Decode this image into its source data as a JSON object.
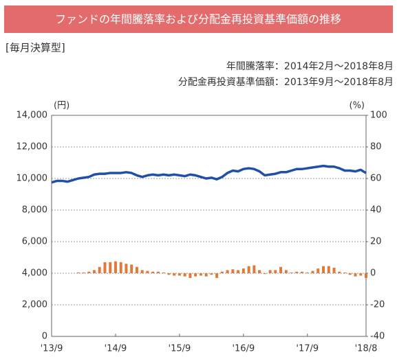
{
  "chart_data": {
    "type": "combo",
    "title": "ファンドの年間騰落率および分配金再投資基準価額の推移",
    "tag": "[毎月決算型]",
    "subtitle": [
      "年間騰落率：2014年2月～2018年8月",
      "分配金再投資基準価額：2013年9月～2018年8月"
    ],
    "y_label": "(円)",
    "y2_label": "(%)",
    "categories": [
      "'13/9",
      null,
      null,
      null,
      null,
      null,
      null,
      null,
      null,
      null,
      null,
      null,
      "'14/9",
      null,
      null,
      null,
      null,
      null,
      null,
      null,
      null,
      null,
      null,
      null,
      "'15/9",
      null,
      null,
      null,
      null,
      null,
      null,
      null,
      null,
      null,
      null,
      null,
      "'16/9",
      null,
      null,
      null,
      null,
      null,
      null,
      null,
      null,
      null,
      null,
      null,
      "'17/9",
      null,
      null,
      null,
      null,
      null,
      null,
      null,
      null,
      null,
      null,
      "'18/8"
    ],
    "series": [
      {
        "type": "line",
        "color": "#1f4fa8",
        "values": [
          9750,
          9850,
          9850,
          9800,
          9900,
          10000,
          10050,
          10100,
          10250,
          10300,
          10300,
          10350,
          10350,
          10350,
          10400,
          10350,
          10200,
          10100,
          10200,
          10250,
          10200,
          10250,
          10200,
          10250,
          10200,
          10150,
          10250,
          10200,
          10100,
          10000,
          10050,
          9950,
          10100,
          10350,
          10500,
          10450,
          10600,
          10650,
          10600,
          10450,
          10200,
          10250,
          10300,
          10400,
          10400,
          10500,
          10600,
          10600,
          10650,
          10700,
          10750,
          10800,
          10750,
          10750,
          10650,
          10500,
          10500,
          10450,
          10550,
          10350
        ]
      },
      {
        "type": "bar",
        "axis": "y2",
        "color": "#e07a3a",
        "values": [
          null,
          null,
          null,
          null,
          null,
          0.5,
          0.5,
          1,
          2,
          4,
          7,
          7,
          7.5,
          7,
          6,
          5.5,
          4,
          2,
          1.5,
          1,
          1,
          0.5,
          -1,
          -1.5,
          -1.5,
          -2,
          -3,
          -2,
          -1.5,
          -2,
          -1,
          -3,
          1,
          2,
          2.5,
          2,
          3,
          4.5,
          5,
          2,
          -0.5,
          2,
          2,
          4,
          2,
          0.5,
          1,
          1,
          0.5,
          1.5,
          3,
          4.5,
          4.5,
          3.5,
          1,
          0.5,
          -1,
          -2,
          -1.5,
          -3
        ]
      }
    ],
    "ylim": [
      0,
      14000
    ],
    "yticks": [
      {
        "value": 0,
        "label": "0"
      },
      {
        "value": 2000,
        "label": "2,000"
      },
      {
        "value": 4000,
        "label": "4,000"
      },
      {
        "value": 6000,
        "label": "6,000"
      },
      {
        "value": 8000,
        "label": "8,000"
      },
      {
        "value": 10000,
        "label": "10,000"
      },
      {
        "value": 12000,
        "label": "12,000"
      },
      {
        "value": 14000,
        "label": "14,000"
      }
    ],
    "y2lim": [
      -40,
      100
    ],
    "y2ticks": [
      -40,
      -20,
      0,
      20,
      40,
      60,
      80,
      100
    ],
    "grid": true
  }
}
